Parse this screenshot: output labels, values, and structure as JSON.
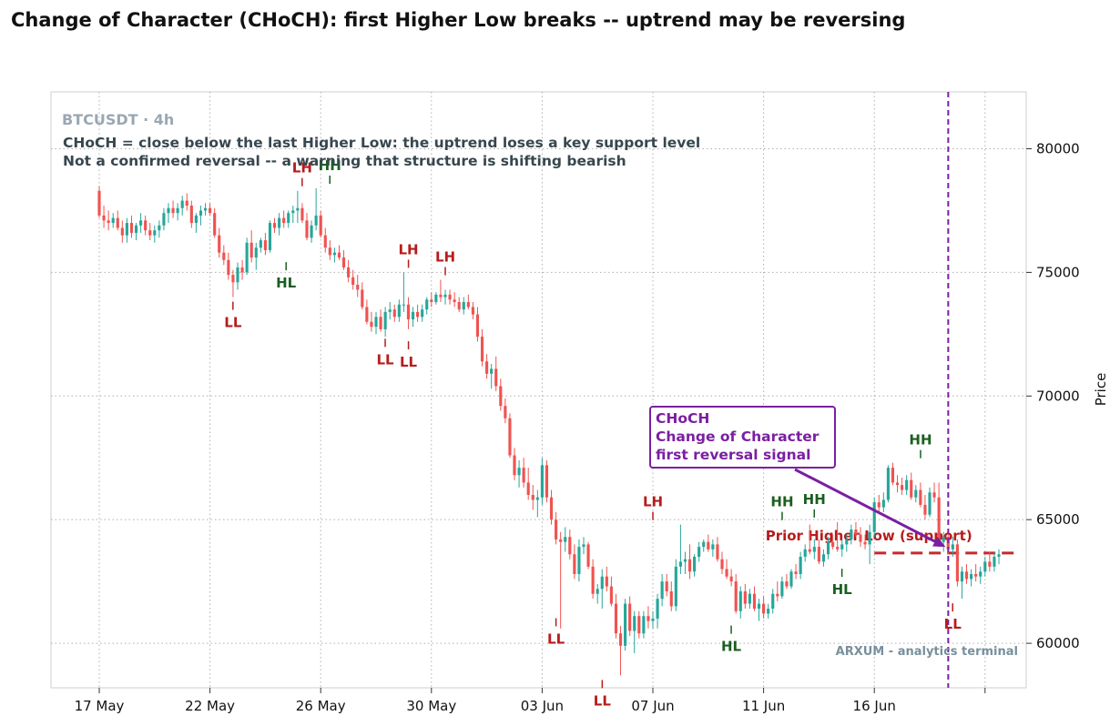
{
  "chart_data": {
    "type": "candlestick",
    "title": "Change of Character (CHoCH): first Higher Low breaks -- uptrend may be reversing",
    "symbol_label": "BTCUSDT · 4h",
    "notes": [
      "CHoCH = close below the last Higher Low: the uptrend loses a key support level",
      "Not a confirmed reversal -- a warning that structure is shifting bearish"
    ],
    "ylabel": "Price",
    "ylim": [
      58200,
      82300
    ],
    "xlim_days": [
      0,
      40.5
    ],
    "y_ticks": [
      60000,
      65000,
      70000,
      75000,
      80000
    ],
    "y_tick_labels": [
      "60000",
      "65000",
      "70000",
      "75000",
      "80000"
    ],
    "x_ticks": [
      {
        "day": 0,
        "label": "17 May"
      },
      {
        "day": 4,
        "label": "22 May"
      },
      {
        "day": 8,
        "label": "26 May"
      },
      {
        "day": 12,
        "label": "30 May"
      },
      {
        "day": 16,
        "label": "03 Jun"
      },
      {
        "day": 20,
        "label": "07 Jun"
      },
      {
        "day": 24,
        "label": "11 Jun"
      },
      {
        "day": 28,
        "label": "16 Jun"
      },
      {
        "day": 32,
        "label": ""
      }
    ],
    "candles_per_day": 6,
    "candles": [
      [
        78300,
        78500,
        77200,
        77300
      ],
      [
        77300,
        77700,
        76800,
        77100
      ],
      [
        77100,
        77500,
        76700,
        77000
      ],
      [
        77000,
        77400,
        76800,
        77200
      ],
      [
        77200,
        77500,
        76700,
        76800
      ],
      [
        76800,
        77100,
        76200,
        76500
      ],
      [
        76500,
        77200,
        76200,
        77000
      ],
      [
        77000,
        77300,
        76400,
        76600
      ],
      [
        76600,
        77000,
        76300,
        76900
      ],
      [
        76900,
        77400,
        76600,
        77100
      ],
      [
        77100,
        77300,
        76500,
        76700
      ],
      [
        76700,
        77000,
        76300,
        76500
      ],
      [
        76500,
        76900,
        76200,
        76700
      ],
      [
        76700,
        77100,
        76400,
        76900
      ],
      [
        76900,
        77600,
        76700,
        77400
      ],
      [
        77400,
        77800,
        77000,
        77600
      ],
      [
        77600,
        77900,
        77200,
        77400
      ],
      [
        77400,
        77800,
        77100,
        77600
      ],
      [
        77600,
        78100,
        77300,
        77900
      ],
      [
        77900,
        78200,
        77500,
        77700
      ],
      [
        77700,
        77900,
        76800,
        77000
      ],
      [
        77000,
        77400,
        76600,
        77300
      ],
      [
        77300,
        77700,
        76900,
        77500
      ],
      [
        77500,
        77800,
        77300,
        77600
      ],
      [
        77600,
        77800,
        77300,
        77400
      ],
      [
        77400,
        77600,
        76400,
        76500
      ],
      [
        76500,
        76800,
        75600,
        75800
      ],
      [
        75800,
        76100,
        75300,
        75500
      ],
      [
        75500,
        75800,
        74700,
        74900
      ],
      [
        74900,
        75100,
        74000,
        74600
      ],
      [
        74600,
        75400,
        74300,
        75200
      ],
      [
        75200,
        75500,
        74700,
        75000
      ],
      [
        75000,
        76400,
        74900,
        76200
      ],
      [
        76200,
        76700,
        75400,
        75600
      ],
      [
        75600,
        76200,
        75100,
        76000
      ],
      [
        76000,
        76400,
        75800,
        76300
      ],
      [
        76300,
        76600,
        75700,
        75900
      ],
      [
        75900,
        77100,
        75800,
        77000
      ],
      [
        77000,
        77200,
        76600,
        76800
      ],
      [
        76800,
        77400,
        76500,
        77200
      ],
      [
        77200,
        77500,
        76800,
        77000
      ],
      [
        77000,
        77500,
        76800,
        77400
      ],
      [
        77400,
        77700,
        77000,
        77500
      ],
      [
        77500,
        78300,
        77000,
        77600
      ],
      [
        77600,
        77800,
        77000,
        77100
      ],
      [
        77100,
        77400,
        76300,
        76400
      ],
      [
        76400,
        77100,
        76200,
        76900
      ],
      [
        76900,
        78400,
        76700,
        77300
      ],
      [
        77300,
        77500,
        76400,
        76500
      ],
      [
        76500,
        76800,
        75800,
        76000
      ],
      [
        76000,
        76300,
        75500,
        75700
      ],
      [
        75700,
        76000,
        75400,
        75800
      ],
      [
        75800,
        76100,
        75500,
        75600
      ],
      [
        75600,
        75900,
        75100,
        75200
      ],
      [
        75200,
        75500,
        74600,
        74800
      ],
      [
        74800,
        75100,
        74300,
        74500
      ],
      [
        74500,
        74900,
        74000,
        74300
      ],
      [
        74300,
        74600,
        73500,
        73600
      ],
      [
        73600,
        73900,
        72900,
        73000
      ],
      [
        73000,
        73400,
        72600,
        72800
      ],
      [
        72800,
        73400,
        72500,
        73200
      ],
      [
        73200,
        73500,
        72600,
        72700
      ],
      [
        72700,
        73600,
        72400,
        73400
      ],
      [
        73400,
        73800,
        73100,
        73500
      ],
      [
        73500,
        73700,
        73000,
        73200
      ],
      [
        73200,
        73900,
        73000,
        73700
      ],
      [
        73700,
        75000,
        73400,
        73700
      ],
      [
        73700,
        74000,
        72700,
        73100
      ],
      [
        73100,
        73600,
        72800,
        73400
      ],
      [
        73400,
        73700,
        73000,
        73200
      ],
      [
        73200,
        73700,
        73000,
        73500
      ],
      [
        73500,
        74000,
        73300,
        73900
      ],
      [
        73900,
        74200,
        73600,
        73800
      ],
      [
        73800,
        74200,
        73700,
        74100
      ],
      [
        74100,
        74700,
        73800,
        74000
      ],
      [
        74000,
        74300,
        73700,
        74100
      ],
      [
        74100,
        74300,
        73700,
        73900
      ],
      [
        73900,
        74200,
        73600,
        73800
      ],
      [
        73800,
        74000,
        73400,
        73500
      ],
      [
        73500,
        74000,
        73300,
        73800
      ],
      [
        73800,
        74100,
        73500,
        73600
      ],
      [
        73600,
        73800,
        73100,
        73300
      ],
      [
        73300,
        73600,
        72200,
        72400
      ],
      [
        72400,
        72700,
        71200,
        71400
      ],
      [
        71400,
        71700,
        70700,
        70900
      ],
      [
        70900,
        71300,
        70300,
        71100
      ],
      [
        71100,
        71600,
        70200,
        70400
      ],
      [
        70400,
        70700,
        69400,
        69600
      ],
      [
        69600,
        69900,
        68900,
        69100
      ],
      [
        69100,
        69300,
        67500,
        67600
      ],
      [
        67600,
        67900,
        66600,
        66800
      ],
      [
        66800,
        67400,
        66300,
        67100
      ],
      [
        67100,
        67500,
        66300,
        66500
      ],
      [
        66500,
        67100,
        65800,
        66000
      ],
      [
        66000,
        66400,
        65400,
        65800
      ],
      [
        65800,
        66200,
        65100,
        65900
      ],
      [
        65900,
        67500,
        65600,
        67200
      ],
      [
        67200,
        67400,
        65700,
        65900
      ],
      [
        65900,
        66200,
        64800,
        65000
      ],
      [
        65000,
        65300,
        64000,
        64200
      ],
      [
        64200,
        64500,
        60600,
        64100
      ],
      [
        64100,
        64700,
        63700,
        64300
      ],
      [
        64300,
        64600,
        63400,
        63600
      ],
      [
        63600,
        64000,
        62600,
        62800
      ],
      [
        62800,
        64200,
        62500,
        63900
      ],
      [
        63900,
        64300,
        63600,
        64000
      ],
      [
        64000,
        64100,
        63000,
        63100
      ],
      [
        63100,
        63400,
        61800,
        62000
      ],
      [
        62000,
        62400,
        61600,
        62200
      ],
      [
        62200,
        63000,
        61400,
        62700
      ],
      [
        62700,
        63100,
        62100,
        62300
      ],
      [
        62300,
        62700,
        61500,
        61600
      ],
      [
        61600,
        62000,
        60200,
        60400
      ],
      [
        60400,
        60700,
        58700,
        59900
      ],
      [
        59900,
        61800,
        59700,
        61600
      ],
      [
        61600,
        61900,
        60300,
        60500
      ],
      [
        60500,
        61300,
        59600,
        61100
      ],
      [
        61100,
        61300,
        60200,
        60400
      ],
      [
        60400,
        61300,
        60200,
        61100
      ],
      [
        61100,
        61500,
        60600,
        60900
      ],
      [
        60900,
        61300,
        60600,
        61000
      ],
      [
        61000,
        62000,
        60600,
        61800
      ],
      [
        61800,
        62800,
        61500,
        62500
      ],
      [
        62500,
        62800,
        61900,
        62100
      ],
      [
        62100,
        62500,
        61300,
        61500
      ],
      [
        61500,
        63400,
        61300,
        63100
      ],
      [
        63100,
        64800,
        62800,
        63300
      ],
      [
        63300,
        63700,
        62800,
        63400
      ],
      [
        63400,
        64000,
        62600,
        62900
      ],
      [
        62900,
        63600,
        62700,
        63500
      ],
      [
        63500,
        64100,
        63300,
        63900
      ],
      [
        63900,
        64200,
        63700,
        64100
      ],
      [
        64100,
        64400,
        63700,
        63800
      ],
      [
        63800,
        64200,
        63500,
        64000
      ],
      [
        64000,
        64300,
        63300,
        63400
      ],
      [
        63400,
        63700,
        62800,
        63000
      ],
      [
        63000,
        63400,
        62600,
        62700
      ],
      [
        62700,
        63000,
        62300,
        62500
      ],
      [
        62500,
        62800,
        61200,
        61300
      ],
      [
        61300,
        62300,
        61000,
        62100
      ],
      [
        62100,
        62400,
        61400,
        61600
      ],
      [
        61600,
        62200,
        61400,
        62000
      ],
      [
        62000,
        62300,
        61300,
        61400
      ],
      [
        61400,
        61800,
        60900,
        61600
      ],
      [
        61600,
        61900,
        61000,
        61200
      ],
      [
        61200,
        61600,
        61000,
        61400
      ],
      [
        61400,
        62200,
        61200,
        62000
      ],
      [
        62000,
        62500,
        61700,
        61900
      ],
      [
        61900,
        62700,
        61800,
        62500
      ],
      [
        62500,
        62800,
        62200,
        62300
      ],
      [
        62300,
        63000,
        62200,
        62900
      ],
      [
        62900,
        63200,
        62600,
        62800
      ],
      [
        62800,
        63700,
        62600,
        63500
      ],
      [
        63500,
        64000,
        63300,
        63800
      ],
      [
        63800,
        64800,
        63600,
        63700
      ],
      [
        63700,
        64200,
        63400,
        63900
      ],
      [
        63900,
        64200,
        63200,
        63300
      ],
      [
        63300,
        63800,
        63100,
        63600
      ],
      [
        63600,
        64300,
        63400,
        64100
      ],
      [
        64100,
        64400,
        63800,
        63900
      ],
      [
        63900,
        64900,
        63700,
        63800
      ],
      [
        63800,
        64200,
        63500,
        64000
      ],
      [
        64000,
        64400,
        63700,
        64200
      ],
      [
        64200,
        64800,
        64000,
        64600
      ],
      [
        64600,
        64900,
        64300,
        64400
      ],
      [
        64400,
        64700,
        63900,
        64100
      ],
      [
        64100,
        64400,
        63800,
        64000
      ],
      [
        64000,
        64800,
        63200,
        64500
      ],
      [
        64500,
        65900,
        64300,
        65700
      ],
      [
        65700,
        66000,
        65300,
        65500
      ],
      [
        65500,
        66100,
        65300,
        65800
      ],
      [
        65800,
        67200,
        65700,
        67100
      ],
      [
        67100,
        67300,
        66400,
        66500
      ],
      [
        66500,
        66800,
        66100,
        66400
      ],
      [
        66400,
        66700,
        66000,
        66200
      ],
      [
        66200,
        66800,
        66000,
        66600
      ],
      [
        66600,
        66900,
        65800,
        65900
      ],
      [
        65900,
        66400,
        65700,
        66200
      ],
      [
        66200,
        66500,
        65500,
        65600
      ],
      [
        65600,
        66000,
        65000,
        65200
      ],
      [
        65200,
        66300,
        65100,
        66100
      ],
      [
        66100,
        66500,
        65700,
        65900
      ],
      [
        65900,
        66500,
        63900,
        64100
      ],
      [
        64100,
        64500,
        63700,
        64300
      ],
      [
        64300,
        64600,
        63600,
        63800
      ],
      [
        63800,
        64300,
        63500,
        64000
      ],
      [
        64000,
        64200,
        62300,
        62500
      ],
      [
        62500,
        63100,
        61800,
        62900
      ],
      [
        62900,
        63200,
        62400,
        62600
      ],
      [
        62600,
        63000,
        62300,
        62800
      ],
      [
        62800,
        63200,
        62500,
        62700
      ],
      [
        62700,
        63100,
        62400,
        62900
      ],
      [
        62900,
        63500,
        62700,
        63300
      ],
      [
        63300,
        63700,
        62900,
        63100
      ],
      [
        63100,
        63700,
        62900,
        63500
      ],
      [
        63500,
        63800,
        63200,
        63600
      ]
    ],
    "structure_labels": [
      {
        "text": "LL",
        "day": 4.83,
        "price": 74000,
        "type": "low",
        "kind": "bear"
      },
      {
        "text": "HL",
        "day": 6.75,
        "price": 75600,
        "type": "low",
        "kind": "bull"
      },
      {
        "text": "LH",
        "day": 7.33,
        "price": 78300,
        "type": "high",
        "kind": "bear"
      },
      {
        "text": "HH",
        "day": 8.33,
        "price": 78400,
        "type": "high",
        "kind": "bull"
      },
      {
        "text": "LL",
        "day": 10.33,
        "price": 72500,
        "type": "low",
        "kind": "bear"
      },
      {
        "text": "LL",
        "day": 11.17,
        "price": 72400,
        "type": "low",
        "kind": "bear"
      },
      {
        "text": "LH",
        "day": 11.17,
        "price": 75000,
        "type": "high",
        "kind": "bear"
      },
      {
        "text": "LH",
        "day": 12.5,
        "price": 74700,
        "type": "high",
        "kind": "bear"
      },
      {
        "text": "LL",
        "day": 16.5,
        "price": 61200,
        "type": "low",
        "kind": "bear"
      },
      {
        "text": "LL",
        "day": 18.17,
        "price": 58700,
        "type": "low",
        "kind": "bear"
      },
      {
        "text": "LH",
        "day": 20.0,
        "price": 64800,
        "type": "high",
        "kind": "bear"
      },
      {
        "text": "HL",
        "day": 22.83,
        "price": 60900,
        "type": "low",
        "kind": "bull"
      },
      {
        "text": "HH",
        "day": 24.67,
        "price": 64800,
        "type": "high",
        "kind": "bull"
      },
      {
        "text": "HH",
        "day": 25.83,
        "price": 64900,
        "type": "high",
        "kind": "bull"
      },
      {
        "text": "HL",
        "day": 26.83,
        "price": 63200,
        "type": "low",
        "kind": "bull"
      },
      {
        "text": "HH",
        "day": 29.67,
        "price": 67300,
        "type": "high",
        "kind": "bull"
      },
      {
        "text": "LL",
        "day": 30.83,
        "price": 61800,
        "type": "low",
        "kind": "bear"
      }
    ],
    "support": {
      "label": "Prior Higher Low (support)",
      "price": 63650,
      "from_day": 28.0,
      "to_day": 33.1
    },
    "choch": {
      "day": 30.67,
      "title": "CHoCH",
      "subtitle": "Change of Character",
      "detail": "first reversal signal",
      "arrow_to_price": 63750
    },
    "watermark": "ARXUM - analytics terminal",
    "colors": {
      "up": "#26a69a",
      "down": "#ef5350",
      "bull_label": "#1b5e20",
      "bear_label": "#b71c1c",
      "choch": "#7b1fa2",
      "support_line": "#c62828",
      "grid": "#b0b0b0"
    },
    "grid": true
  }
}
